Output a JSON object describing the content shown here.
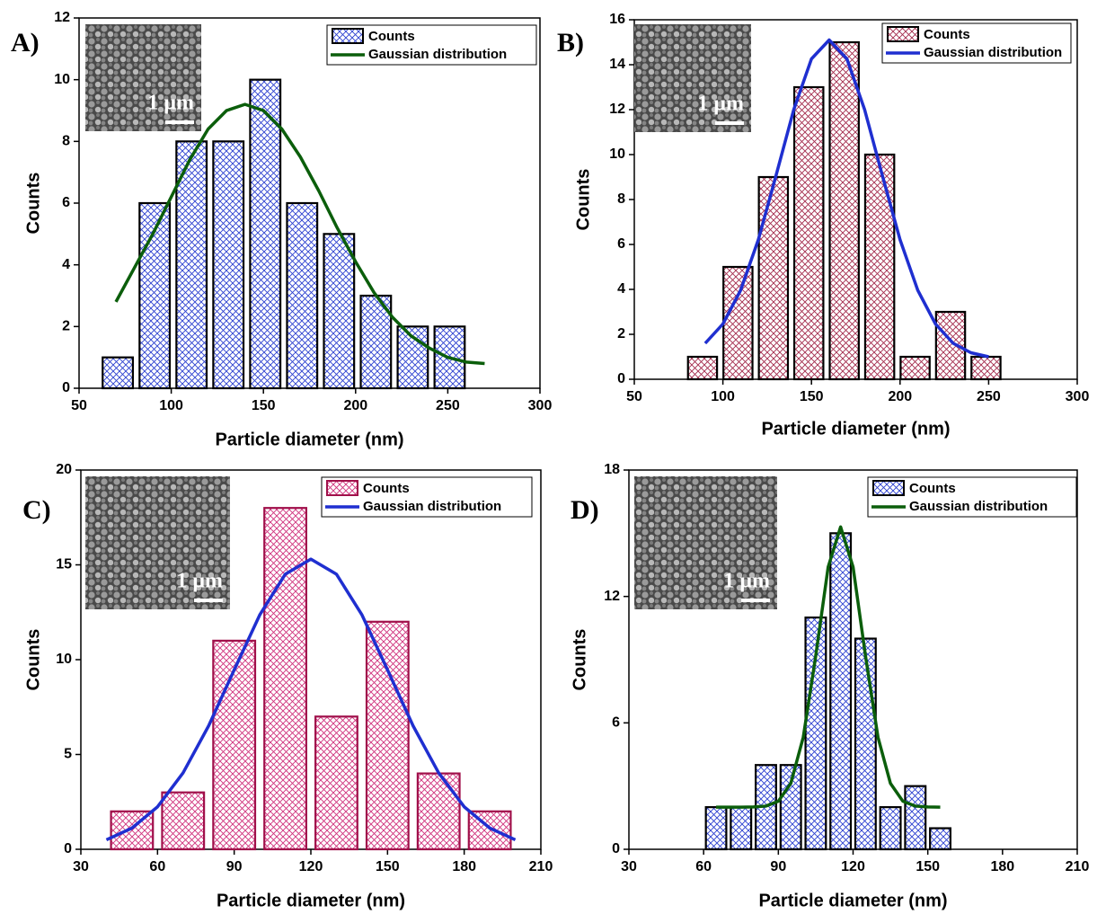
{
  "chart_data": [
    {
      "type": "histogram",
      "label": "A)",
      "xlabel": "Particle diameter (nm)",
      "ylabel": "Counts",
      "inset_label": "1 μm",
      "xlim": [
        50,
        300
      ],
      "xticks": [
        50,
        100,
        150,
        200,
        250,
        300
      ],
      "ylim": [
        0,
        12
      ],
      "yticks": [
        0,
        2,
        4,
        6,
        8,
        10,
        12
      ],
      "bins": [
        61,
        81,
        101,
        121,
        141,
        161,
        181,
        201,
        221,
        241,
        261
      ],
      "series": [
        {
          "name": "Counts",
          "color": "#2b3fd0",
          "edge_color": "#000000",
          "values": [
            1,
            6,
            8,
            8,
            10,
            6,
            5,
            3,
            2,
            2
          ]
        },
        {
          "name": "Gaussian distribution",
          "color": "#0b5e0b",
          "x": [
            70,
            80,
            90,
            100,
            110,
            120,
            130,
            140,
            150,
            160,
            170,
            180,
            190,
            200,
            210,
            220,
            230,
            240,
            250,
            260,
            270
          ],
          "values": [
            2.8,
            3.9,
            5.0,
            6.2,
            7.4,
            8.4,
            9.0,
            9.2,
            9.0,
            8.4,
            7.5,
            6.4,
            5.2,
            4.1,
            3.1,
            2.3,
            1.7,
            1.3,
            1.0,
            0.85,
            0.8
          ]
        }
      ]
    },
    {
      "type": "histogram",
      "label": "B)",
      "xlabel": "Particle diameter (nm)",
      "ylabel": "Counts",
      "inset_label": "1 μm",
      "xlim": [
        50,
        300
      ],
      "xticks": [
        50,
        100,
        150,
        200,
        250,
        300
      ],
      "ylim": [
        0,
        16
      ],
      "yticks": [
        0,
        2,
        4,
        6,
        8,
        10,
        12,
        14,
        16
      ],
      "bins": [
        78.5,
        98.5,
        118.5,
        138.5,
        158.5,
        178.5,
        198.5,
        218.5,
        238.5,
        258.5
      ],
      "series": [
        {
          "name": "Counts",
          "color": "#a32a4c",
          "edge_color": "#000000",
          "values": [
            1,
            5,
            9,
            13,
            15,
            10,
            1,
            3,
            1
          ]
        },
        {
          "name": "Gaussian distribution",
          "color": "#1f2fd0",
          "x": [
            90,
            100,
            110,
            120,
            130,
            140,
            150,
            160,
            170,
            180,
            190,
            200,
            210,
            220,
            230,
            240,
            250
          ],
          "values": [
            1.6,
            2.46,
            3.96,
            6.21,
            9.07,
            12.0,
            14.26,
            15.1,
            14.26,
            12.0,
            9.07,
            6.21,
            3.96,
            2.46,
            1.6,
            1.18,
            1.0
          ]
        }
      ]
    },
    {
      "type": "histogram",
      "label": "C)",
      "xlabel": "Particle diameter (nm)",
      "ylabel": "Counts",
      "inset_label": "1 μm",
      "xlim": [
        30,
        210
      ],
      "xticks": [
        30,
        60,
        90,
        120,
        150,
        180,
        210
      ],
      "ylim": [
        0,
        20
      ],
      "yticks": [
        0,
        5,
        10,
        15,
        20
      ],
      "bins": [
        40,
        60,
        80,
        100,
        120,
        140,
        160,
        180,
        200
      ],
      "series": [
        {
          "name": "Counts",
          "color": "#d0307c",
          "edge_color": "#a0104a",
          "values": [
            2,
            3,
            11,
            18,
            7,
            12,
            4,
            2
          ]
        },
        {
          "name": "Gaussian distribution",
          "color": "#1f2fd0",
          "x": [
            40,
            50,
            60,
            70,
            80,
            90,
            100,
            110,
            120,
            130,
            140,
            150,
            160,
            170,
            180,
            190,
            200
          ],
          "values": [
            0.5,
            1.12,
            2.24,
            4.03,
            6.51,
            9.46,
            12.36,
            14.51,
            15.3,
            14.51,
            12.36,
            9.46,
            6.51,
            4.03,
            2.24,
            1.12,
            0.5
          ]
        }
      ]
    },
    {
      "type": "histogram",
      "label": "D)",
      "xlabel": "Particle diameter (nm)",
      "ylabel": "Counts",
      "inset_label": "1 μm",
      "xlim": [
        30,
        210
      ],
      "xticks": [
        30,
        60,
        90,
        120,
        150,
        180,
        210
      ],
      "ylim": [
        0,
        18
      ],
      "yticks": [
        0,
        6,
        12,
        18
      ],
      "bins": [
        60,
        70,
        80,
        90,
        100,
        110,
        120,
        130,
        140,
        150,
        160
      ],
      "series": [
        {
          "name": "Counts",
          "color": "#2b3fd0",
          "edge_color": "#000000",
          "values": [
            2,
            2,
            4,
            4,
            11,
            15,
            10,
            2,
            3,
            1
          ]
        },
        {
          "name": "Gaussian distribution",
          "color": "#0b5e0b",
          "x": [
            65,
            70,
            75,
            80,
            85,
            90,
            95,
            100,
            105,
            110,
            115,
            120,
            125,
            130,
            135,
            140,
            145,
            150,
            155
          ],
          "values": [
            2.0,
            2.0,
            2.0,
            2.01,
            2.05,
            2.28,
            3.13,
            5.32,
            9.17,
            13.4,
            15.3,
            13.4,
            9.17,
            5.32,
            3.13,
            2.28,
            2.05,
            2.01,
            2.0
          ]
        }
      ]
    }
  ]
}
